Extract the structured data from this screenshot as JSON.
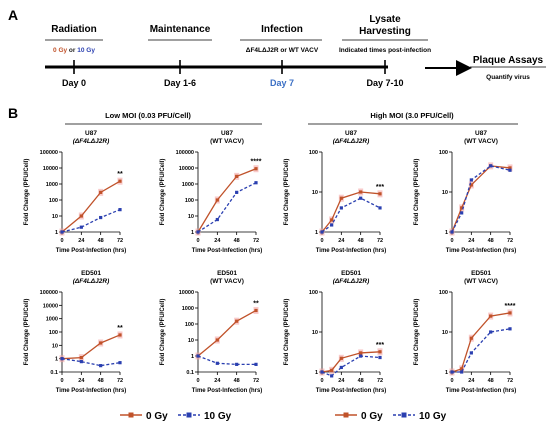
{
  "colors": {
    "zero": "#C0522A",
    "ten": "#2A3FB0",
    "day7": "#3B6FC4",
    "err": "#f4a6a6"
  },
  "panel_a": {
    "label": "A",
    "steps": [
      {
        "title": "Radiation",
        "under": [
          "0 Gy",
          " or ",
          "10 Gy"
        ],
        "day": "Day 0"
      },
      {
        "title": "Maintenance",
        "under": [],
        "day": "Day 1-6"
      },
      {
        "title": "Infection",
        "under": [
          "ΔF4LΔJ2R or WT VACV"
        ],
        "day": "Day 7"
      },
      {
        "title_lines": [
          "Lysate",
          "Harvesting"
        ],
        "under": [
          "Indicated times post-infection"
        ],
        "day": "Day 7-10"
      }
    ],
    "final": {
      "title": "Plaque Assays",
      "sub": "Quantify virus"
    }
  },
  "panel_b": {
    "label": "B",
    "group_low": "Low MOI (0.03 PFU/Cell)",
    "group_high": "High MOI (3.0 PFU/Cell)",
    "ylabel": "Fold Change (PFU/Cell)",
    "xlabel": "Time Post-Infection (hrs)",
    "legend": {
      "zero": "0 Gy",
      "ten": "10 Gy"
    }
  },
  "chart_data": [
    {
      "type": "line",
      "cell": "U87",
      "virus": "(ΔF4LΔJ2R)",
      "scale": "log",
      "ylim": [
        1,
        100000
      ],
      "yticks": [
        "1",
        "10",
        "100",
        "1000",
        "10000",
        "100000"
      ],
      "x": [
        0,
        24,
        48,
        72
      ],
      "xticks": [
        "0",
        "24",
        "48",
        "72"
      ],
      "series": [
        {
          "name": "0 Gy",
          "values": [
            1,
            10,
            300,
            1500
          ]
        },
        {
          "name": "10 Gy",
          "values": [
            1,
            2,
            8,
            25
          ]
        }
      ],
      "sig": "**"
    },
    {
      "type": "line",
      "cell": "U87",
      "virus": "(WT VACV)",
      "scale": "log",
      "ylim": [
        1,
        100000
      ],
      "yticks": [
        "1",
        "10",
        "100",
        "1000",
        "10000",
        "100000"
      ],
      "x": [
        0,
        24,
        48,
        72
      ],
      "xticks": [
        "0",
        "24",
        "48",
        "72"
      ],
      "series": [
        {
          "name": "0 Gy",
          "values": [
            1,
            100,
            3000,
            9000
          ]
        },
        {
          "name": "10 Gy",
          "values": [
            1,
            6,
            300,
            1200
          ]
        }
      ],
      "sig": "****"
    },
    {
      "type": "line",
      "cell": "U87",
      "virus": "(ΔF4LΔJ2R)",
      "scale": "log",
      "ylim": [
        1,
        100
      ],
      "yticks": [
        "1",
        "10",
        "100"
      ],
      "x": [
        0,
        12,
        24,
        48,
        72
      ],
      "xticks": [
        "0",
        "24",
        "48",
        "72"
      ],
      "series": [
        {
          "name": "0 Gy",
          "values": [
            1,
            2,
            7,
            10,
            9
          ]
        },
        {
          "name": "10 Gy",
          "values": [
            1,
            1.5,
            4,
            7,
            4
          ]
        }
      ],
      "sig": "***"
    },
    {
      "type": "line",
      "cell": "U87",
      "virus": "(WT VACV)",
      "scale": "log",
      "ylim": [
        1,
        100
      ],
      "yticks": [
        "1",
        "10",
        "100"
      ],
      "x": [
        0,
        12,
        24,
        48,
        72
      ],
      "xticks": [
        "0",
        "24",
        "48",
        "72"
      ],
      "series": [
        {
          "name": "0 Gy",
          "values": [
            1,
            4,
            15,
            45,
            40
          ]
        },
        {
          "name": "10 Gy",
          "values": [
            1,
            3,
            20,
            45,
            35
          ]
        }
      ],
      "sig": ""
    },
    {
      "type": "line",
      "cell": "ED501",
      "virus": "(ΔF4LΔJ2R)",
      "scale": "log",
      "ylim": [
        0.1,
        100000
      ],
      "yticks": [
        "0.1",
        "1",
        "10",
        "100",
        "1000",
        "10000",
        "100000"
      ],
      "x": [
        0,
        24,
        48,
        72
      ],
      "xticks": [
        "0",
        "24",
        "48",
        "72"
      ],
      "series": [
        {
          "name": "0 Gy",
          "values": [
            1,
            1.2,
            15,
            60
          ]
        },
        {
          "name": "10 Gy",
          "values": [
            1,
            0.6,
            0.3,
            0.5
          ]
        }
      ],
      "sig": "**"
    },
    {
      "type": "line",
      "cell": "ED501",
      "virus": "(WT VACV)",
      "scale": "log",
      "ylim": [
        0.1,
        10000
      ],
      "yticks": [
        "0.1",
        "1",
        "10",
        "100",
        "1000",
        "10000"
      ],
      "x": [
        0,
        24,
        48,
        72
      ],
      "xticks": [
        "0",
        "24",
        "48",
        "72"
      ],
      "series": [
        {
          "name": "0 Gy",
          "values": [
            1,
            10,
            150,
            700
          ]
        },
        {
          "name": "10 Gy",
          "values": [
            1,
            0.35,
            0.3,
            0.3
          ]
        }
      ],
      "sig": "**"
    },
    {
      "type": "line",
      "cell": "ED501",
      "virus": "(ΔF4LΔJ2R)",
      "scale": "log",
      "ylim": [
        1,
        100
      ],
      "yticks": [
        "1",
        "10",
        "100"
      ],
      "x": [
        0,
        12,
        24,
        48,
        72
      ],
      "xticks": [
        "0",
        "24",
        "48",
        "72"
      ],
      "series": [
        {
          "name": "0 Gy",
          "values": [
            1,
            1.1,
            2.2,
            3,
            3.2
          ]
        },
        {
          "name": "10 Gy",
          "values": [
            1,
            0.8,
            1.3,
            2.5,
            2.3
          ]
        }
      ],
      "sig": "***"
    },
    {
      "type": "line",
      "cell": "ED501",
      "virus": "(WT VACV)",
      "scale": "log",
      "ylim": [
        1,
        100
      ],
      "yticks": [
        "1",
        "10",
        "100"
      ],
      "x": [
        0,
        12,
        24,
        48,
        72
      ],
      "xticks": [
        "0",
        "24",
        "48",
        "72"
      ],
      "series": [
        {
          "name": "0 Gy",
          "values": [
            1,
            1.2,
            7,
            25,
            30
          ]
        },
        {
          "name": "10 Gy",
          "values": [
            1,
            1,
            3,
            10,
            12
          ]
        }
      ],
      "sig": "****"
    }
  ]
}
